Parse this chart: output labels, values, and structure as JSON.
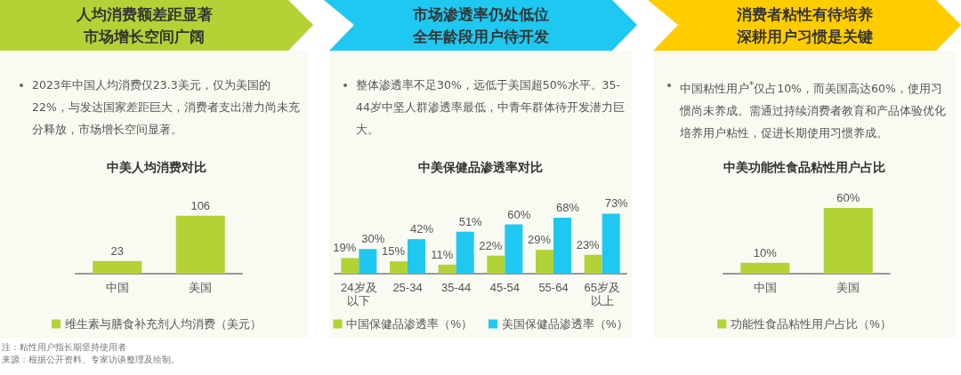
{
  "chart_data": [
    {
      "type": "bar",
      "subtitle": "人均消费额差距显著市场增长空间广阔",
      "title": "中美人均消费对比",
      "annotations": [
        "2023年中国人均消费仅23.3美元，仅为美国的22%，与发达国家差距巨大，消费者支出潜力尚未充分释放，市场增长空间显著。",
        "注：粘性用户指长期坚持使用者",
        "来源：根据公开资料、专家访谈整理及绘制。"
      ],
      "categories": [
        "中国",
        "美国"
      ],
      "series": [
        {
          "name": "维生素与膳食补充剂人均消费（美元）",
          "color": "#b2d235",
          "values": [
            23,
            106
          ]
        }
      ],
      "data_labels": true,
      "legend": "bottom"
    },
    {
      "type": "bar",
      "subtitle": "市场渗透率仍处低位全年龄段用户待开发",
      "title": "中美保健品渗透率对比",
      "annotations": [
        "整体渗透率不足30%，远低于美国超50%水平。35-44岁中坚人群渗透率最低，中青年群体待开发潜力巨大。"
      ],
      "categories": [
        "24岁及以下",
        "25-34",
        "35-44",
        "45-54",
        "55-64",
        "65岁及以上"
      ],
      "series": [
        {
          "name": "中国保健品渗透率（%）",
          "color": "#b2d235",
          "values": [
            19,
            15,
            11,
            22,
            29,
            23
          ],
          "value_labels": [
            "19%",
            "15%",
            "11%",
            "22%",
            "29%",
            "23%"
          ]
        },
        {
          "name": "美国保健品渗透率（%）",
          "color": "#1ec8f0",
          "values": [
            30,
            42,
            51,
            60,
            68,
            73
          ],
          "value_labels": [
            "30%",
            "42%",
            "51%",
            "60%",
            "68%",
            "73%"
          ]
        }
      ],
      "legend": "bottom"
    },
    {
      "type": "bar",
      "subtitle": "消费者粘性有待培养深耕用户习惯是关键",
      "title": "中美功能性食品粘性用户占比",
      "annotations": [
        "中国粘性用户$^{*}$仅占10%，而美国高达60%，使用习惯尚未养成。需通过持续消费者教育和产品体验优化培养用户粘性，促进长期使用习惯养成。"
      ],
      "categories": [
        "中国",
        "美国"
      ],
      "series": [
        {
          "name": "功能性食品粘性用户占比（%）",
          "color": "#b2d235",
          "values": [
            10,
            60
          ],
          "value_labels": [
            "10%",
            "60%"
          ]
        }
      ],
      "legend": "bottom"
    }
  ]
}
